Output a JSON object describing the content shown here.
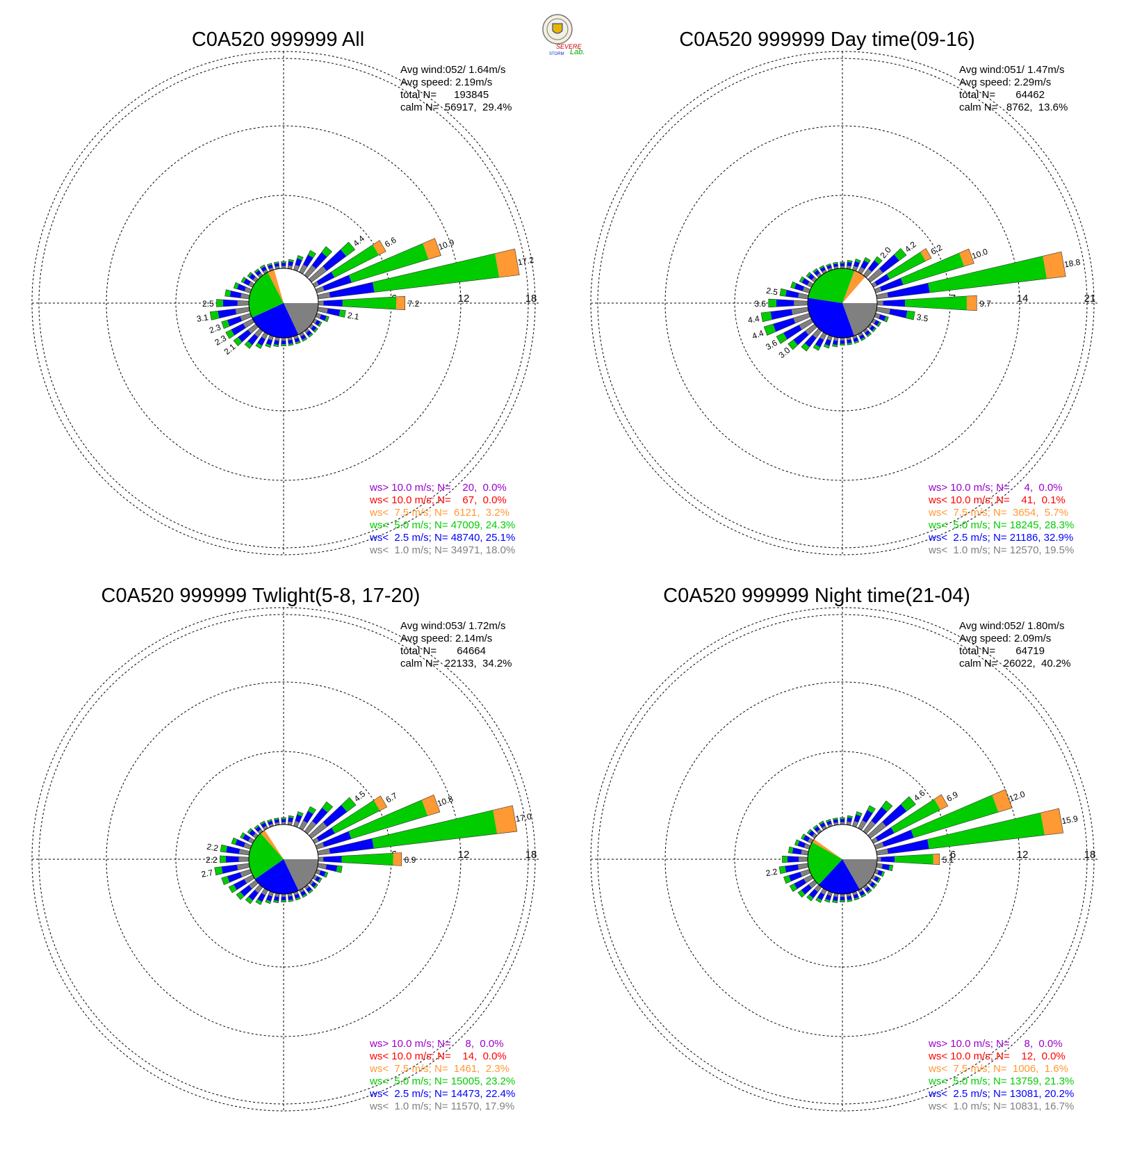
{
  "logo": {
    "text_top": "SEVERE",
    "text_bottom": "STORM",
    "text_lab": "Lab."
  },
  "colors": {
    "gt10": "#9900cc",
    "lt10": "#ff0000",
    "lt7_5": "#ff9933",
    "lt5": "#00cc00",
    "lt2_5": "#0000ff",
    "lt1": "#808080",
    "axis": "#000000"
  },
  "chart_data": [
    {
      "type": "polar-bar",
      "title": "C0A520 999999 All",
      "rings": [
        6,
        12,
        18
      ],
      "ring_labels": [
        "6",
        "12",
        "18"
      ],
      "stats": [
        "Avg wind:052/ 1.64m/s",
        "Avg speed: 2.19m/s",
        "total N=      193845",
        "calm N=  56917,  29.4%"
      ],
      "pie": [
        29.4,
        18.0,
        25.1,
        24.3,
        3.2
      ],
      "legend": [
        "ws> 10.0 m/s; N=    20,  0.0%",
        "ws< 10.0 m/s; N=    67,  0.0%",
        "ws<  7.5 m/s; N=  6121,  3.2%",
        "ws<  5.0 m/s; N= 47009, 24.3%",
        "ws<  2.5 m/s; N= 48740, 25.1%",
        "ws<  1.0 m/s; N= 34971, 18.0%"
      ],
      "sectors": [
        {
          "dir": 0,
          "total": 0.3
        },
        {
          "dir": 10,
          "total": 0.5
        },
        {
          "dir": 20,
          "total": 1.0
        },
        {
          "dir": 30,
          "total": 1.8
        },
        {
          "dir": 40,
          "total": 2.8
        },
        {
          "dir": 50,
          "total": 4.4,
          "label": "4.4"
        },
        {
          "dir": 60,
          "total": 6.6,
          "label": "6.6"
        },
        {
          "dir": 70,
          "total": 10.9,
          "label": "10.9"
        },
        {
          "dir": 80,
          "total": 17.2,
          "label": "17.2"
        },
        {
          "dir": 90,
          "total": 7.2,
          "label": "7.2"
        },
        {
          "dir": 100,
          "total": 2.1,
          "label": "2.1"
        },
        {
          "dir": 110,
          "total": 0.8
        },
        {
          "dir": 120,
          "total": 0.4
        },
        {
          "dir": 130,
          "total": 0.4
        },
        {
          "dir": 140,
          "total": 0.4
        },
        {
          "dir": 150,
          "total": 0.4
        },
        {
          "dir": 160,
          "total": 0.4
        },
        {
          "dir": 170,
          "total": 0.4
        },
        {
          "dir": 180,
          "total": 0.4
        },
        {
          "dir": 190,
          "total": 0.5
        },
        {
          "dir": 200,
          "total": 0.7
        },
        {
          "dir": 210,
          "total": 1.1
        },
        {
          "dir": 220,
          "total": 1.6
        },
        {
          "dir": 230,
          "total": 2.1,
          "label": "2.1"
        },
        {
          "dir": 240,
          "total": 2.3,
          "label": "2.3"
        },
        {
          "dir": 250,
          "total": 2.3,
          "label": "2.3"
        },
        {
          "dir": 260,
          "total": 3.1,
          "label": "3.1"
        },
        {
          "dir": 270,
          "total": 2.5,
          "label": "2.5"
        },
        {
          "dir": 280,
          "total": 1.8
        },
        {
          "dir": 290,
          "total": 1.2
        },
        {
          "dir": 300,
          "total": 0.8
        },
        {
          "dir": 310,
          "total": 0.6
        },
        {
          "dir": 320,
          "total": 0.4
        },
        {
          "dir": 330,
          "total": 0.4
        },
        {
          "dir": 340,
          "total": 0.3
        },
        {
          "dir": 350,
          "total": 0.3
        }
      ]
    },
    {
      "type": "polar-bar",
      "title": "C0A520 999999 Day time(09-16)",
      "rings": [
        7,
        14,
        21
      ],
      "ring_labels": [
        "7",
        "14",
        "21"
      ],
      "stats": [
        "Avg wind:051/ 1.47m/s",
        "Avg speed: 2.29m/s",
        "total N=       64462",
        "calm N=   8762,  13.6%"
      ],
      "pie": [
        13.6,
        19.5,
        32.9,
        28.3,
        5.7
      ],
      "legend": [
        "ws> 10.0 m/s; N=     4,  0.0%",
        "ws< 10.0 m/s; N=    41,  0.1%",
        "ws<  7.5 m/s; N=  3654,  5.7%",
        "ws<  5.0 m/s; N= 18245, 28.3%",
        "ws<  2.5 m/s; N= 21186, 32.9%",
        "ws<  1.0 m/s; N= 12570, 19.5%"
      ],
      "sectors": [
        {
          "dir": 0,
          "total": 0.3
        },
        {
          "dir": 10,
          "total": 0.5
        },
        {
          "dir": 20,
          "total": 0.8
        },
        {
          "dir": 30,
          "total": 1.3
        },
        {
          "dir": 40,
          "total": 2.0,
          "label": "2.0"
        },
        {
          "dir": 50,
          "total": 4.2,
          "label": "4.2"
        },
        {
          "dir": 60,
          "total": 6.2,
          "label": "6.2"
        },
        {
          "dir": 70,
          "total": 10.0,
          "label": "10.0"
        },
        {
          "dir": 80,
          "total": 18.8,
          "label": "18.8"
        },
        {
          "dir": 90,
          "total": 9.7,
          "label": "9.7"
        },
        {
          "dir": 100,
          "total": 3.5,
          "label": "3.5"
        },
        {
          "dir": 110,
          "total": 1.0
        },
        {
          "dir": 120,
          "total": 0.5
        },
        {
          "dir": 130,
          "total": 0.4
        },
        {
          "dir": 140,
          "total": 0.4
        },
        {
          "dir": 150,
          "total": 0.4
        },
        {
          "dir": 160,
          "total": 0.4
        },
        {
          "dir": 170,
          "total": 0.4
        },
        {
          "dir": 180,
          "total": 0.4
        },
        {
          "dir": 190,
          "total": 0.6
        },
        {
          "dir": 200,
          "total": 0.9
        },
        {
          "dir": 210,
          "total": 1.5
        },
        {
          "dir": 220,
          "total": 2.2
        },
        {
          "dir": 230,
          "total": 3.0,
          "label": "3.0"
        },
        {
          "dir": 240,
          "total": 3.6,
          "label": "3.6"
        },
        {
          "dir": 250,
          "total": 4.4,
          "label": "4.4"
        },
        {
          "dir": 260,
          "total": 4.4,
          "label": "4.4"
        },
        {
          "dir": 270,
          "total": 3.6,
          "label": "3.6"
        },
        {
          "dir": 280,
          "total": 2.5,
          "label": "2.5"
        },
        {
          "dir": 290,
          "total": 1.6
        },
        {
          "dir": 300,
          "total": 1.0
        },
        {
          "dir": 310,
          "total": 0.7
        },
        {
          "dir": 320,
          "total": 0.5
        },
        {
          "dir": 330,
          "total": 0.4
        },
        {
          "dir": 340,
          "total": 0.3
        },
        {
          "dir": 350,
          "total": 0.3
        }
      ]
    },
    {
      "type": "polar-bar",
      "title": "C0A520 999999 Twlight(5-8, 17-20)",
      "rings": [
        6,
        12,
        18
      ],
      "ring_labels": [
        "6",
        "12",
        "18"
      ],
      "stats": [
        "Avg wind:053/ 1.72m/s",
        "Avg speed: 2.14m/s",
        "total N=       64664",
        "calm N=  22133,  34.2%"
      ],
      "pie": [
        34.2,
        17.9,
        22.4,
        23.2,
        2.3
      ],
      "legend": [
        "ws> 10.0 m/s; N=     8,  0.0%",
        "ws< 10.0 m/s; N=    14,  0.0%",
        "ws<  7.5 m/s; N=  1461,  2.3%",
        "ws<  5.0 m/s; N= 15005, 23.2%",
        "ws<  2.5 m/s; N= 14473, 22.4%",
        "ws<  1.0 m/s; N= 11570, 17.9%"
      ],
      "sectors": [
        {
          "dir": 0,
          "total": 0.3
        },
        {
          "dir": 10,
          "total": 0.5
        },
        {
          "dir": 20,
          "total": 1.0
        },
        {
          "dir": 30,
          "total": 1.8
        },
        {
          "dir": 40,
          "total": 2.9
        },
        {
          "dir": 50,
          "total": 4.5,
          "label": "4.5"
        },
        {
          "dir": 60,
          "total": 6.7,
          "label": "6.7"
        },
        {
          "dir": 70,
          "total": 10.8,
          "label": "10.8"
        },
        {
          "dir": 80,
          "total": 17.0,
          "label": "17.0"
        },
        {
          "dir": 90,
          "total": 6.9,
          "label": "6.9"
        },
        {
          "dir": 100,
          "total": 1.8
        },
        {
          "dir": 110,
          "total": 0.7
        },
        {
          "dir": 120,
          "total": 0.4
        },
        {
          "dir": 130,
          "total": 0.4
        },
        {
          "dir": 140,
          "total": 0.4
        },
        {
          "dir": 150,
          "total": 0.4
        },
        {
          "dir": 160,
          "total": 0.4
        },
        {
          "dir": 170,
          "total": 0.4
        },
        {
          "dir": 180,
          "total": 0.4
        },
        {
          "dir": 190,
          "total": 0.5
        },
        {
          "dir": 200,
          "total": 0.7
        },
        {
          "dir": 210,
          "total": 1.1
        },
        {
          "dir": 220,
          "total": 1.5
        },
        {
          "dir": 230,
          "total": 1.8
        },
        {
          "dir": 240,
          "total": 2.0
        },
        {
          "dir": 250,
          "total": 2.3
        },
        {
          "dir": 260,
          "total": 2.7,
          "label": "2.7"
        },
        {
          "dir": 270,
          "total": 2.2,
          "label": "2.2"
        },
        {
          "dir": 280,
          "total": 2.2,
          "label": "2.2"
        },
        {
          "dir": 290,
          "total": 1.4
        },
        {
          "dir": 300,
          "total": 0.9
        },
        {
          "dir": 310,
          "total": 0.6
        },
        {
          "dir": 320,
          "total": 0.4
        },
        {
          "dir": 330,
          "total": 0.4
        },
        {
          "dir": 340,
          "total": 0.3
        },
        {
          "dir": 350,
          "total": 0.3
        }
      ]
    },
    {
      "type": "polar-bar",
      "title": "C0A520 999999 Night time(21-04)",
      "rings": [
        6,
        12,
        18
      ],
      "ring_labels": [
        "6",
        "12",
        "18"
      ],
      "stats": [
        "Avg wind:052/ 1.80m/s",
        "Avg speed: 2.09m/s",
        "total N=       64719",
        "calm N=  26022,  40.2%"
      ],
      "pie": [
        40.2,
        16.7,
        20.2,
        21.3,
        1.6
      ],
      "legend": [
        "ws> 10.0 m/s; N=     8,  0.0%",
        "ws< 10.0 m/s; N=    12,  0.0%",
        "ws<  7.5 m/s; N=  1006,  1.6%",
        "ws<  5.0 m/s; N= 13759, 21.3%",
        "ws<  2.5 m/s; N= 13081, 20.2%",
        "ws<  1.0 m/s; N= 10831, 16.7%"
      ],
      "sectors": [
        {
          "dir": 0,
          "total": 0.3
        },
        {
          "dir": 10,
          "total": 0.5
        },
        {
          "dir": 20,
          "total": 1.0
        },
        {
          "dir": 30,
          "total": 1.9
        },
        {
          "dir": 40,
          "total": 3.0
        },
        {
          "dir": 50,
          "total": 4.6,
          "label": "4.6"
        },
        {
          "dir": 60,
          "total": 6.9,
          "label": "6.9"
        },
        {
          "dir": 70,
          "total": 12.0,
          "label": "12.0"
        },
        {
          "dir": 80,
          "total": 15.9,
          "label": "15.9"
        },
        {
          "dir": 90,
          "total": 5.1,
          "label": "5.1"
        },
        {
          "dir": 100,
          "total": 1.1
        },
        {
          "dir": 110,
          "total": 0.5
        },
        {
          "dir": 120,
          "total": 0.4
        },
        {
          "dir": 130,
          "total": 0.4
        },
        {
          "dir": 140,
          "total": 0.4
        },
        {
          "dir": 150,
          "total": 0.4
        },
        {
          "dir": 160,
          "total": 0.4
        },
        {
          "dir": 170,
          "total": 0.4
        },
        {
          "dir": 180,
          "total": 0.4
        },
        {
          "dir": 190,
          "total": 0.5
        },
        {
          "dir": 200,
          "total": 0.6
        },
        {
          "dir": 210,
          "total": 0.9
        },
        {
          "dir": 220,
          "total": 1.2
        },
        {
          "dir": 230,
          "total": 1.5
        },
        {
          "dir": 240,
          "total": 1.8
        },
        {
          "dir": 250,
          "total": 2.0
        },
        {
          "dir": 260,
          "total": 2.2,
          "label": "2.2"
        },
        {
          "dir": 270,
          "total": 1.9
        },
        {
          "dir": 280,
          "total": 1.4
        },
        {
          "dir": 290,
          "total": 1.0
        },
        {
          "dir": 300,
          "total": 0.7
        },
        {
          "dir": 310,
          "total": 0.5
        },
        {
          "dir": 320,
          "total": 0.4
        },
        {
          "dir": 330,
          "total": 0.4
        },
        {
          "dir": 340,
          "total": 0.3
        },
        {
          "dir": 350,
          "total": 0.3
        }
      ]
    }
  ]
}
